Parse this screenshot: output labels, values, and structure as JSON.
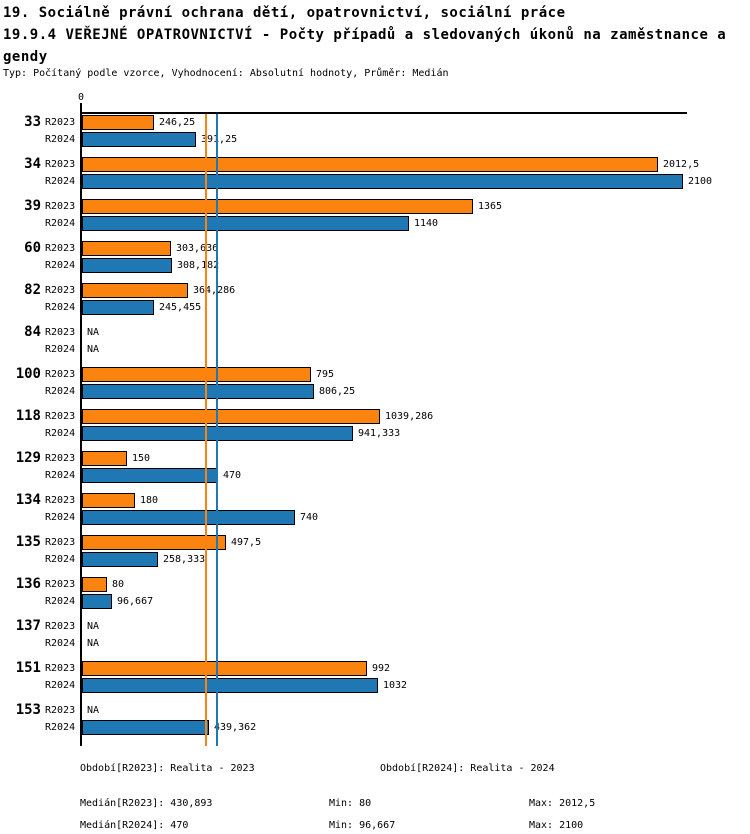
{
  "header": {
    "title_line1": "19. Sociálně právní ochrana dětí, opatrovnictví, sociální práce",
    "title_line2": "19.9.4 VEŘEJNÉ OPATROVNICTVÍ - Počty případů a sledovaných úkonů na zaměstnance a",
    "title_line3": "gendy",
    "subtitle": "Typ: Počítaný podle vzorce, Vyhodnocení: Absolutní hodnoty, Průměr: Medián"
  },
  "chart_data": {
    "type": "bar",
    "orientation": "horizontal",
    "xlim": [
      0,
      2100
    ],
    "zero_tick_label": "0",
    "grid": false,
    "series_labels": [
      "R2023",
      "R2024"
    ],
    "colors": {
      "R2023": "#fb8410",
      "R2024": "#1f77b4",
      "axis": "#000000"
    },
    "categories": [
      "33",
      "34",
      "39",
      "60",
      "82",
      "84",
      "100",
      "118",
      "129",
      "134",
      "135",
      "136",
      "137",
      "151",
      "153"
    ],
    "groups": [
      {
        "category": "33",
        "bars": [
          {
            "series": "R2023",
            "value": 246.25,
            "label": "246,25"
          },
          {
            "series": "R2024",
            "value": 391.25,
            "label": "391,25"
          }
        ]
      },
      {
        "category": "34",
        "bars": [
          {
            "series": "R2023",
            "value": 2012.5,
            "label": "2012,5"
          },
          {
            "series": "R2024",
            "value": 2100,
            "label": "2100"
          }
        ]
      },
      {
        "category": "39",
        "bars": [
          {
            "series": "R2023",
            "value": 1365,
            "label": "1365"
          },
          {
            "series": "R2024",
            "value": 1140,
            "label": "1140"
          }
        ]
      },
      {
        "category": "60",
        "bars": [
          {
            "series": "R2023",
            "value": 303.636,
            "label": "303,636"
          },
          {
            "series": "R2024",
            "value": 308.182,
            "label": "308,182"
          }
        ]
      },
      {
        "category": "82",
        "bars": [
          {
            "series": "R2023",
            "value": 364.286,
            "label": "364,286"
          },
          {
            "series": "R2024",
            "value": 245.455,
            "label": "245,455"
          }
        ]
      },
      {
        "category": "84",
        "bars": [
          {
            "series": "R2023",
            "value": null,
            "label": "NA"
          },
          {
            "series": "R2024",
            "value": null,
            "label": "NA"
          }
        ]
      },
      {
        "category": "100",
        "bars": [
          {
            "series": "R2023",
            "value": 795,
            "label": "795"
          },
          {
            "series": "R2024",
            "value": 806.25,
            "label": "806,25"
          }
        ]
      },
      {
        "category": "118",
        "bars": [
          {
            "series": "R2023",
            "value": 1039.286,
            "label": "1039,286"
          },
          {
            "series": "R2024",
            "value": 941.333,
            "label": "941,333"
          }
        ]
      },
      {
        "category": "129",
        "bars": [
          {
            "series": "R2023",
            "value": 150,
            "label": "150"
          },
          {
            "series": "R2024",
            "value": 470,
            "label": "470"
          }
        ]
      },
      {
        "category": "134",
        "bars": [
          {
            "series": "R2023",
            "value": 180,
            "label": "180"
          },
          {
            "series": "R2024",
            "value": 740,
            "label": "740"
          }
        ]
      },
      {
        "category": "135",
        "bars": [
          {
            "series": "R2023",
            "value": 497.5,
            "label": "497,5"
          },
          {
            "series": "R2024",
            "value": 258.333,
            "label": "258,333"
          }
        ]
      },
      {
        "category": "136",
        "bars": [
          {
            "series": "R2023",
            "value": 80,
            "label": "80"
          },
          {
            "series": "R2024",
            "value": 96.667,
            "label": "96,667"
          }
        ]
      },
      {
        "category": "137",
        "bars": [
          {
            "series": "R2023",
            "value": null,
            "label": "NA"
          },
          {
            "series": "R2024",
            "value": null,
            "label": "NA"
          }
        ]
      },
      {
        "category": "151",
        "bars": [
          {
            "series": "R2023",
            "value": 992,
            "label": "992"
          },
          {
            "series": "R2024",
            "value": 1032,
            "label": "1032"
          }
        ]
      },
      {
        "category": "153",
        "bars": [
          {
            "series": "R2023",
            "value": null,
            "label": "NA"
          },
          {
            "series": "R2024",
            "value": 439.362,
            "label": "439,362"
          }
        ]
      }
    ],
    "median_lines": [
      {
        "series": "R2023",
        "value": 430.893,
        "color": "#fb8410"
      },
      {
        "series": "R2024",
        "value": 470,
        "color": "#1f77b4"
      }
    ]
  },
  "footer": {
    "period_r2023": "Období[R2023]: Realita - 2023",
    "period_r2024": "Období[R2024]: Realita - 2024",
    "median_r2023": "Medián[R2023]: 430,893",
    "min_r2023": "Min: 80",
    "max_r2023": "Max: 2012,5",
    "median_r2024": "Medián[R2024]: 470",
    "min_r2024": "Min: 96,667",
    "max_r2024": "Max: 2100"
  }
}
